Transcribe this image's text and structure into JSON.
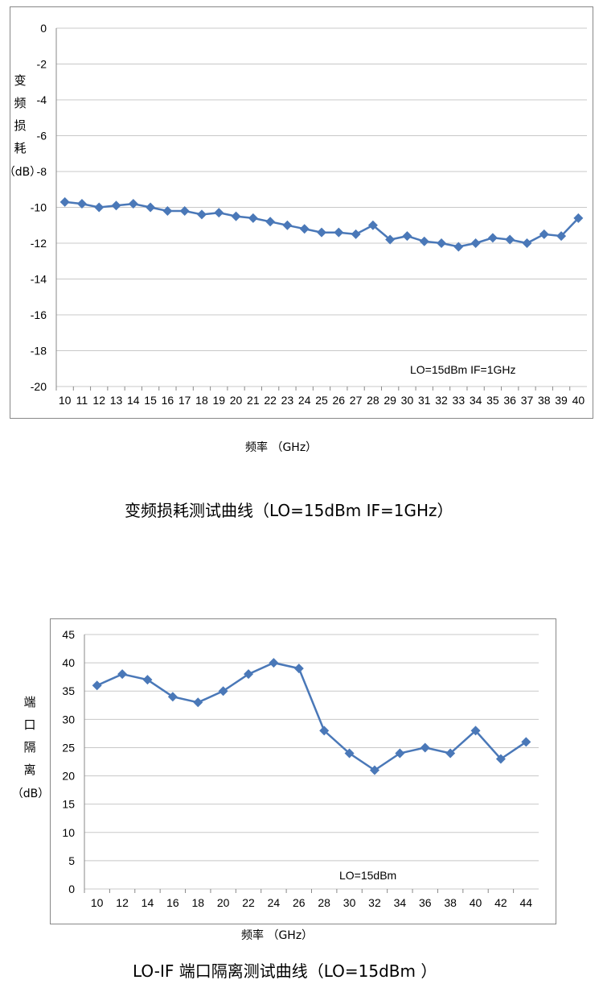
{
  "chart_data": [
    {
      "type": "line",
      "title": "",
      "caption": "变频损耗测试曲线（LO=15dBm IF=1GHz）",
      "ylabel_chars": [
        "变",
        "频",
        "损",
        "耗"
      ],
      "yunit": "（dB）",
      "xlabel": "频率 （GHz）",
      "annotation": "LO=15dBm    IF=1GHz",
      "ylim": [
        -20,
        0
      ],
      "yticks": [
        0,
        -2,
        -4,
        -6,
        -8,
        -10,
        -12,
        -14,
        -16,
        -18,
        -20
      ],
      "grid": "horizontal",
      "legend": "none",
      "color": "#4a78b8",
      "x": [
        10,
        11,
        12,
        13,
        14,
        15,
        16,
        17,
        18,
        19,
        20,
        21,
        22,
        23,
        24,
        25,
        26,
        27,
        28,
        29,
        30,
        31,
        32,
        33,
        34,
        35,
        36,
        37,
        38,
        39,
        40
      ],
      "y": [
        -9.7,
        -9.8,
        -10.0,
        -9.9,
        -9.8,
        -10.0,
        -10.2,
        -10.2,
        -10.4,
        -10.3,
        -10.5,
        -10.6,
        -10.8,
        -11.0,
        -11.2,
        -11.4,
        -11.4,
        -11.5,
        -11.0,
        -11.8,
        -11.6,
        -11.9,
        -12.0,
        -12.2,
        -12.0,
        -11.7,
        -11.8,
        -12.0,
        -11.5,
        -11.6,
        -10.6
      ]
    },
    {
      "type": "line",
      "title": "",
      "caption": "LO-IF 端口隔离测试曲线（LO=15dBm ）",
      "ylabel_chars": [
        "端",
        "口",
        "隔",
        "离"
      ],
      "yunit": "（dB）",
      "xlabel": "频率 （GHz）",
      "annotation": "LO=15dBm",
      "ylim": [
        0,
        45
      ],
      "yticks": [
        0,
        5,
        10,
        15,
        20,
        25,
        30,
        35,
        40,
        45
      ],
      "grid": "horizontal",
      "legend": "none",
      "color": "#4a78b8",
      "x": [
        10,
        12,
        14,
        16,
        18,
        20,
        22,
        24,
        26,
        28,
        30,
        32,
        34,
        36,
        38,
        40,
        42,
        44
      ],
      "y": [
        36,
        38,
        37,
        34,
        33,
        35,
        38,
        40,
        39,
        28,
        24,
        21,
        24,
        25,
        24,
        28,
        23,
        26
      ]
    }
  ]
}
